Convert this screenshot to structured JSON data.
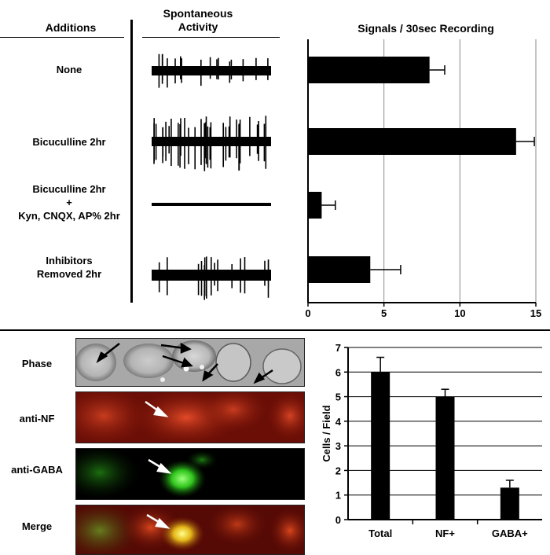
{
  "panel_top": {
    "col_additions": "Additions",
    "col_activity": "Spontaneous Activity",
    "col_signals": "Signals / 30sec Recording",
    "conditions": [
      {
        "label": "None"
      },
      {
        "label": "Bicuculline 2hr"
      },
      {
        "label": "Bicuculline 2hr\n+\nKyn, CNQX, AP% 2hr"
      },
      {
        "label": "Inhibitors\nRemoved 2hr"
      }
    ]
  },
  "panel_bottom": {
    "image_labels": [
      "Phase",
      "anti-NF",
      "anti-GABA",
      "Merge"
    ]
  },
  "chart_data": [
    {
      "type": "bar",
      "orientation": "horizontal",
      "title": "Signals / 30sec Recording",
      "categories": [
        "None",
        "Bicuculline 2hr",
        "Bicuculline 2hr + Kyn, CNQX, AP% 2hr",
        "Inhibitors Removed 2hr"
      ],
      "values": [
        8.0,
        13.7,
        0.9,
        4.1
      ],
      "errors": [
        1.0,
        1.2,
        0.9,
        2.0
      ],
      "xlim": [
        0,
        15
      ],
      "xticks": [
        0,
        5,
        10,
        15
      ],
      "grid": "vertical",
      "bar_color": "#000000"
    },
    {
      "type": "bar",
      "orientation": "vertical",
      "ylabel": "Cells / Field",
      "categories": [
        "Total",
        "NF+",
        "GABA+"
      ],
      "values": [
        6.0,
        5.0,
        1.3
      ],
      "errors": [
        0.6,
        0.3,
        0.3
      ],
      "ylim": [
        0,
        7
      ],
      "yticks": [
        0,
        1,
        2,
        3,
        4,
        5,
        6,
        7
      ],
      "grid": "horizontal",
      "bar_color": "#000000"
    }
  ]
}
